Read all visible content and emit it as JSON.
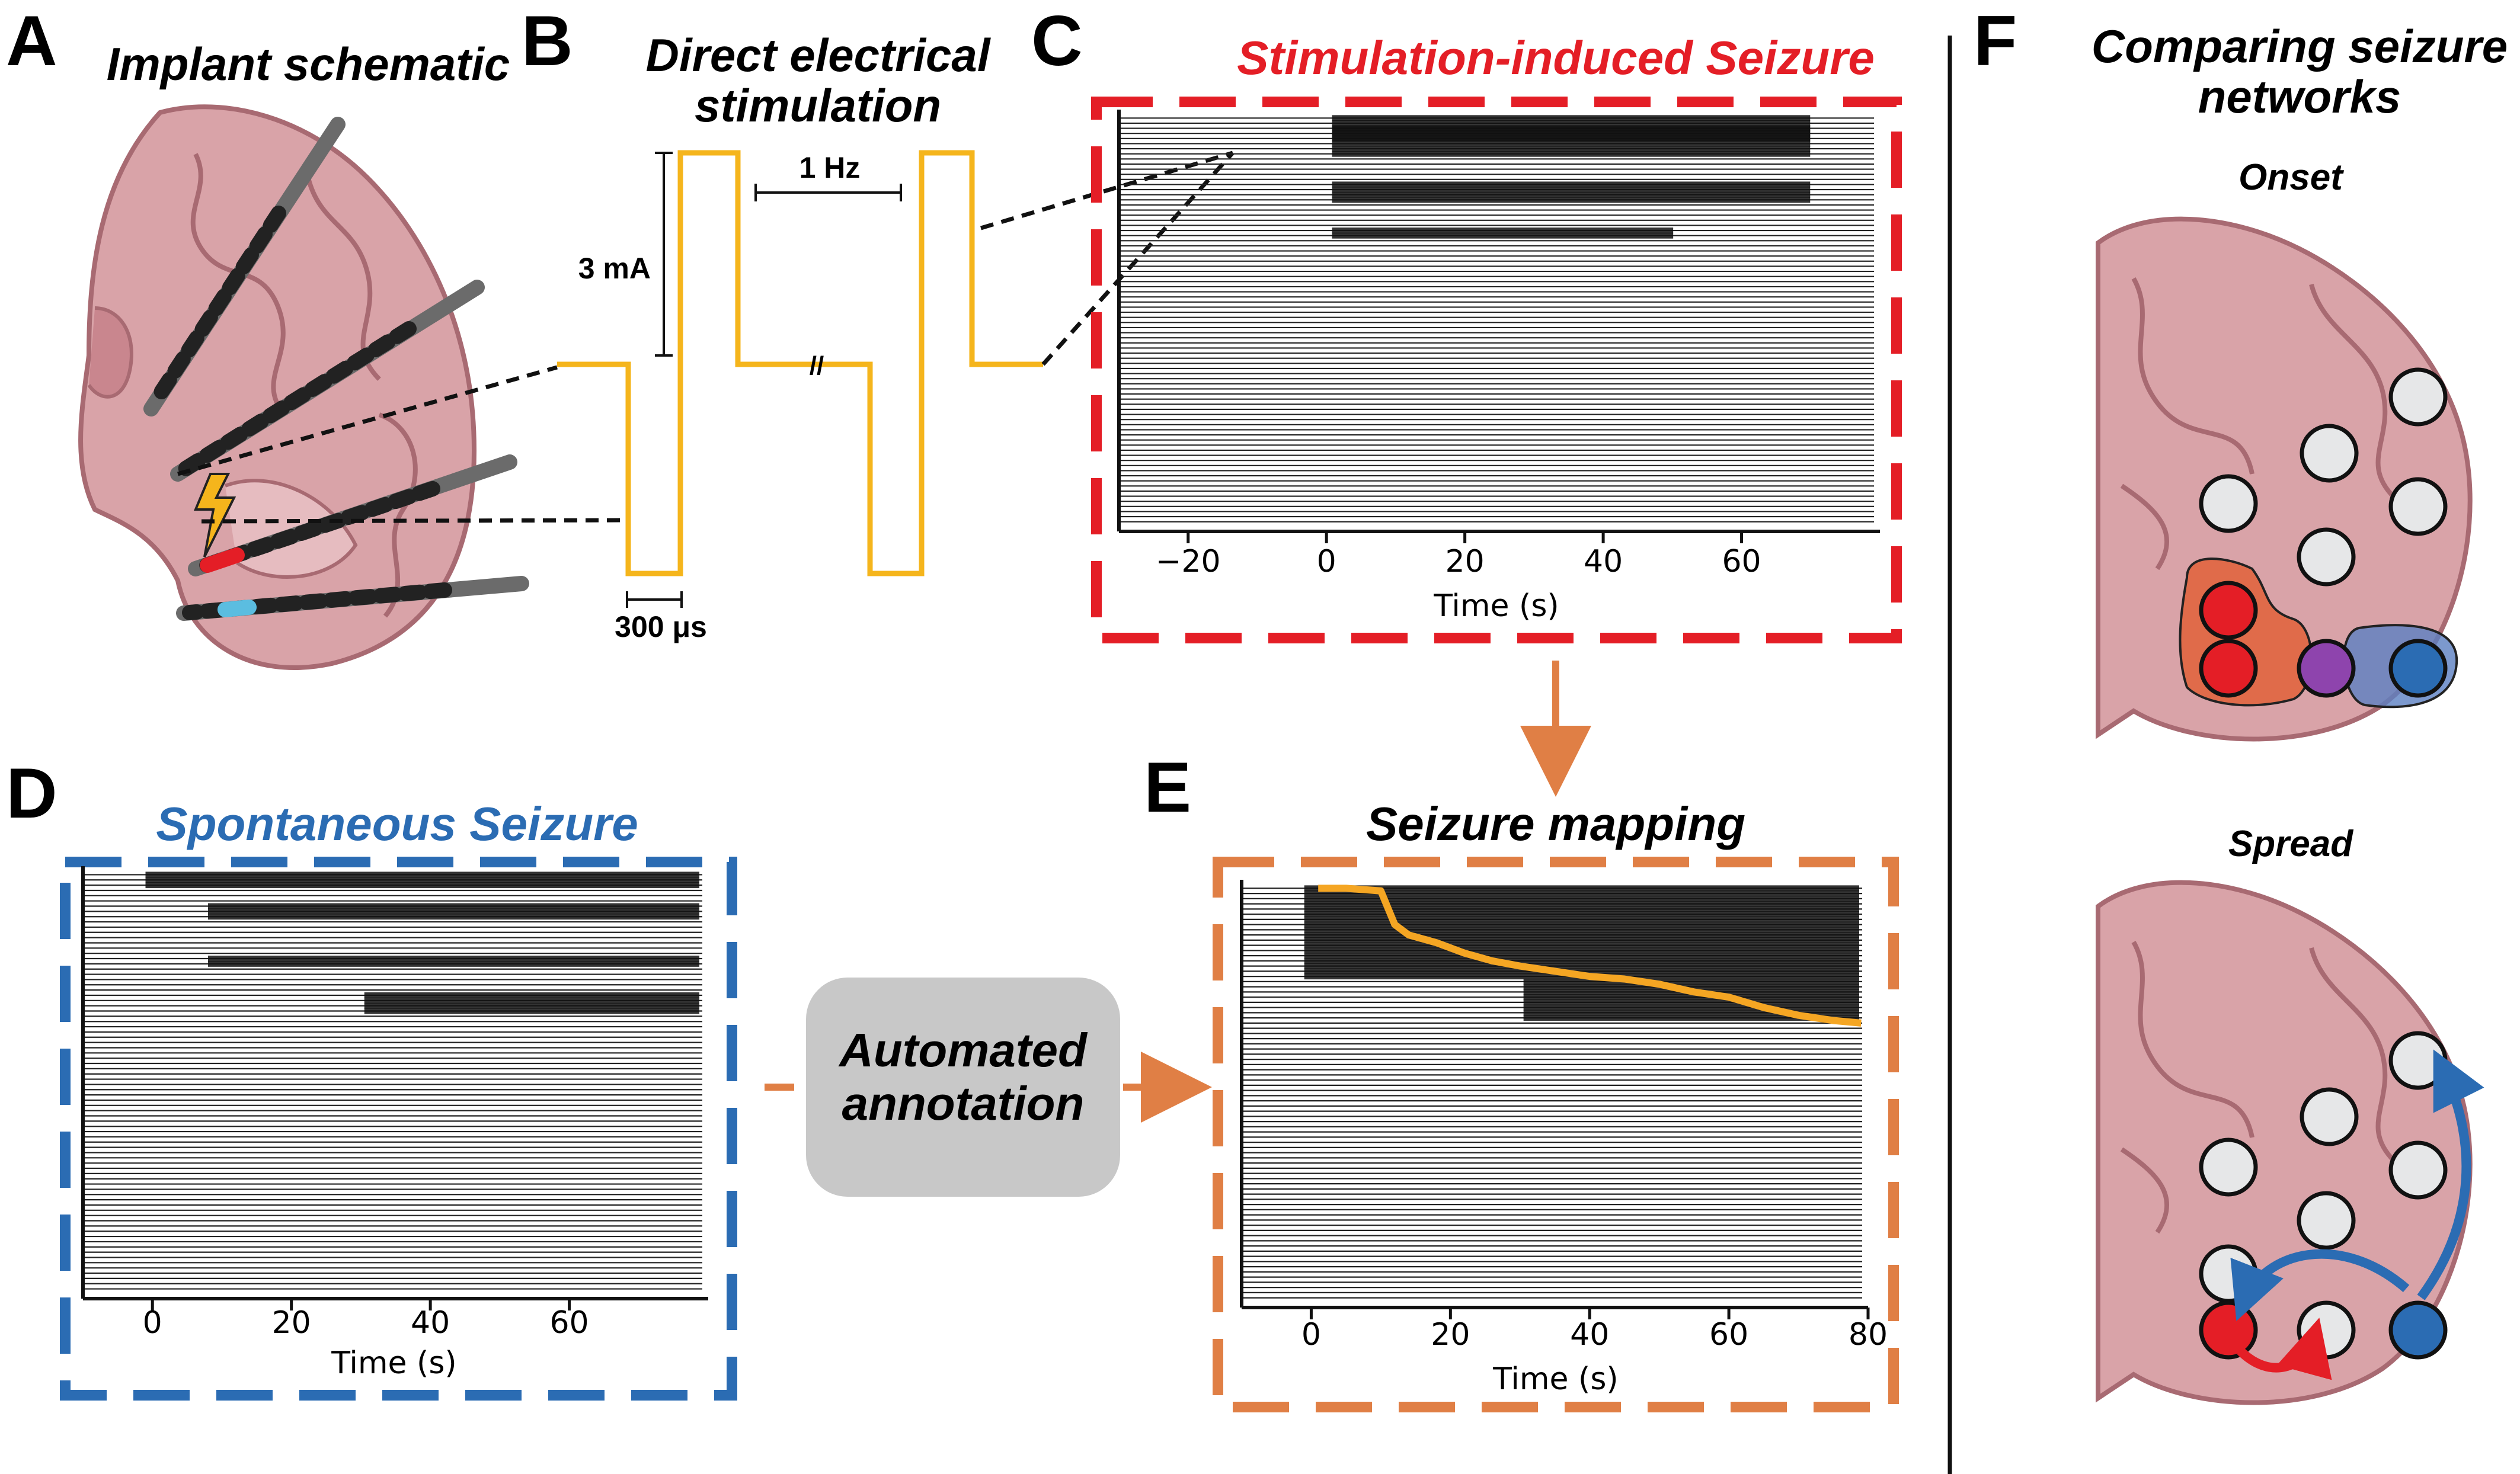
{
  "panels": {
    "a": {
      "letter": "A",
      "title": "Implant schematic"
    },
    "b": {
      "letter": "B",
      "title_line1": "Direct electrical",
      "title_line2": "stimulation",
      "amp": "3 mA",
      "freq": "1 Hz",
      "pulse": "300 μs",
      "break_mark": "//"
    },
    "c": {
      "letter": "C",
      "title": "Stimulation-induced Seizure",
      "xlabel": "Time (s)"
    },
    "d": {
      "letter": "D",
      "title": "Spontaneous Seizure",
      "xlabel": "Time (s)"
    },
    "e": {
      "letter": "E",
      "title": "Seizure mapping",
      "xlabel": "Time (s)"
    },
    "f": {
      "letter": "F",
      "title_line1": "Comparing seizure",
      "title_line2": "networks",
      "onset": "Onset",
      "spread": "Spread"
    }
  },
  "annotation_box": {
    "line1": "Automated",
    "line2": "annotation"
  },
  "colors": {
    "red": "#e41e26",
    "blue": "#2b6cb3",
    "orange": "#e07f45",
    "yellow": "#f5b51c",
    "purple": "#8e44ad",
    "node_gray": "#e6e7e8",
    "brain": "#d9a3a8",
    "brain_dark": "#a86a72",
    "box_gray": "#c8c8c8"
  },
  "chart_data": [
    {
      "type": "line",
      "panel": "C",
      "xlabel": "Time (s)",
      "xlim": [
        -30,
        80
      ],
      "x_ticks": [
        -20,
        0,
        20,
        40,
        60
      ],
      "n_channels": 80
    },
    {
      "type": "line",
      "panel": "D",
      "xlabel": "Time (s)",
      "xlim": [
        -10,
        80
      ],
      "x_ticks": [
        0,
        20,
        40,
        60
      ],
      "n_channels": 80
    },
    {
      "type": "line",
      "panel": "E",
      "xlabel": "Time (s)",
      "xlim": [
        -10,
        80
      ],
      "x_ticks": [
        0,
        20,
        40,
        60,
        80
      ],
      "n_channels": 80,
      "annotation_line": {
        "x": [
          1,
          5,
          10,
          12,
          14,
          18,
          22,
          26,
          30,
          35,
          40,
          45,
          50,
          55,
          60,
          65,
          70,
          75,
          79
        ],
        "channel": [
          0,
          0,
          0.5,
          7,
          9,
          10.5,
          12.5,
          14,
          15,
          16,
          17,
          17.5,
          18.5,
          20,
          21,
          23,
          24.5,
          25.5,
          26
        ]
      }
    }
  ]
}
